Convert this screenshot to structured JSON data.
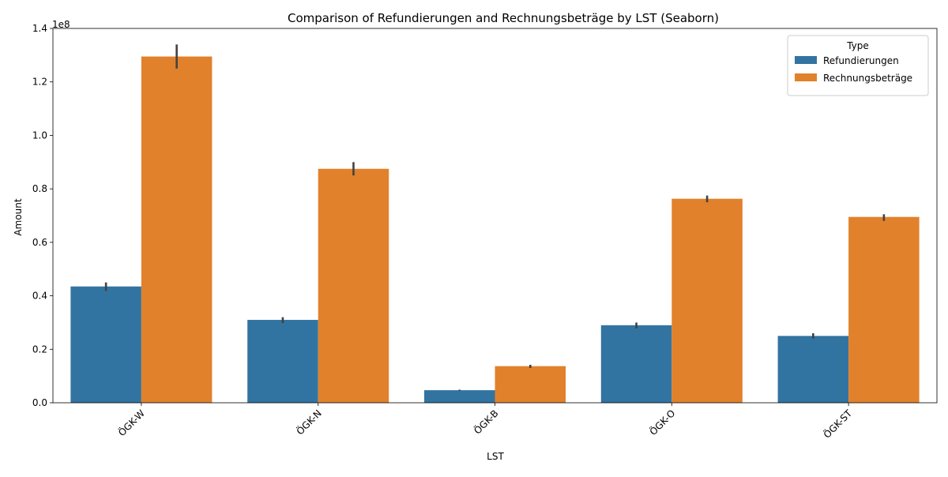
{
  "chart_data": {
    "type": "bar",
    "title": "Comparison of Refundierungen and Rechnungsbeträge by LST (Seaborn)",
    "xlabel": "LST",
    "ylabel": "Amount",
    "y_offset_label": "1e8",
    "ylim": [
      0,
      140000000
    ],
    "yticks": [
      0,
      20000000,
      40000000,
      60000000,
      80000000,
      100000000,
      120000000,
      140000000
    ],
    "ytick_labels": [
      "0.0",
      "0.2",
      "0.4",
      "0.6",
      "0.8",
      "1.0",
      "1.2",
      "1.4"
    ],
    "categories": [
      "ÖGK-W",
      "ÖGK-N",
      "ÖGK-B",
      "ÖGK-O",
      "ÖGK-ST"
    ],
    "legend": {
      "title": "Type",
      "placement": "top-right"
    },
    "grid": false,
    "series": [
      {
        "name": "Refundierungen",
        "color": "#3274a1",
        "values": [
          43500000,
          31000000,
          4700000,
          29000000,
          25000000
        ],
        "error_low": [
          41800000,
          29800000,
          4500000,
          27800000,
          24000000
        ],
        "error_high": [
          45000000,
          32000000,
          4900000,
          30000000,
          26000000
        ]
      },
      {
        "name": "Rechnungsbeträge",
        "color": "#e1812c",
        "values": [
          129500000,
          87500000,
          13700000,
          76300000,
          69500000
        ],
        "error_low": [
          125000000,
          85000000,
          13000000,
          75000000,
          68000000
        ],
        "error_high": [
          134000000,
          90000000,
          14200000,
          77500000,
          70500000
        ]
      }
    ]
  }
}
